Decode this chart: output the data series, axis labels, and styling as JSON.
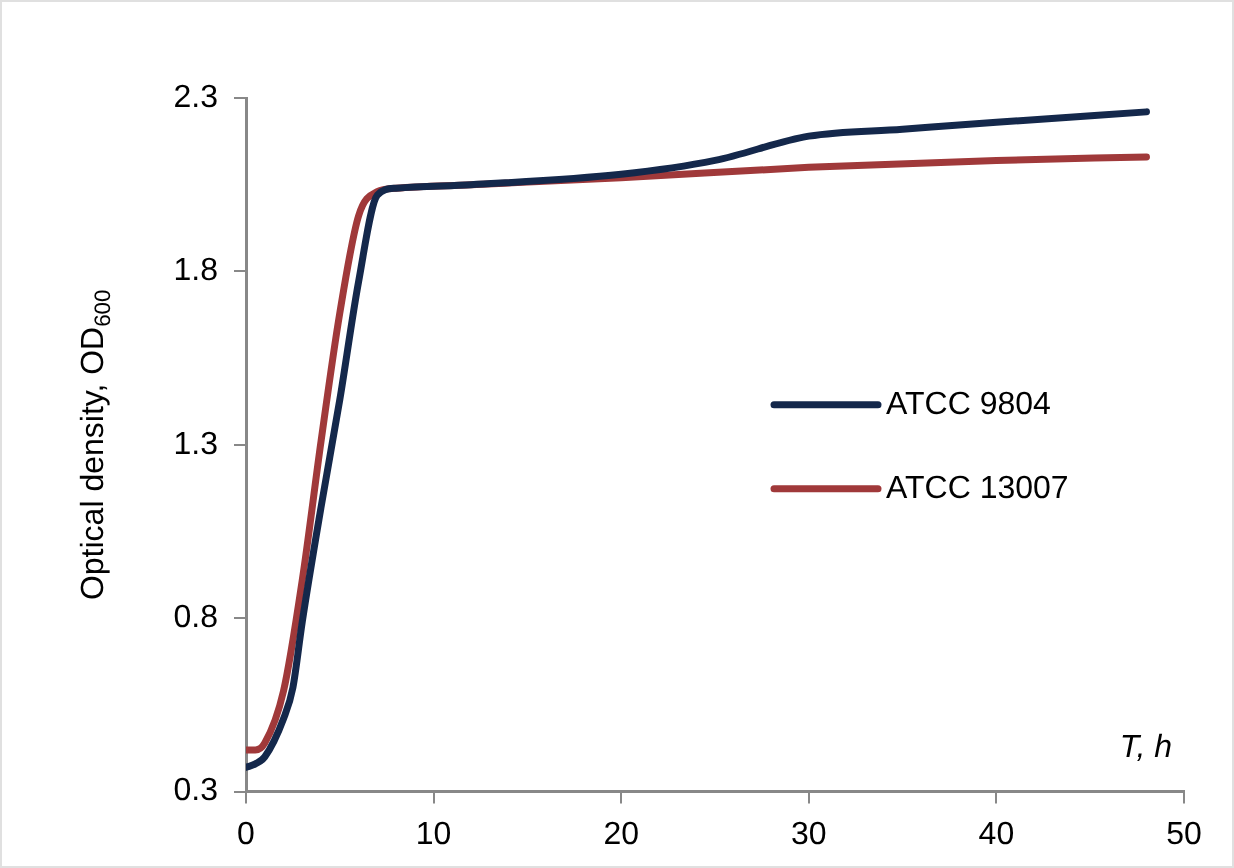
{
  "chart_data": {
    "type": "line",
    "xlabel": "T, h",
    "ylabel": "Optical density, OD$_{600}$",
    "xlim": [
      0,
      50
    ],
    "xticks": [
      0,
      10,
      20,
      30,
      40,
      50
    ],
    "ylim": [
      0.3,
      2.3
    ],
    "yticks": [
      {
        "value": 0.3,
        "label": "0.3"
      },
      {
        "value": 0.8,
        "label": "0.8"
      },
      {
        "value": 1.3,
        "label": "1.3"
      },
      {
        "value": 1.8,
        "label": "1.8"
      },
      {
        "value": 2.3,
        "label": "2.3"
      }
    ],
    "grid": false,
    "legend": "right",
    "marker": "none",
    "line_style": "solid",
    "series": [
      {
        "name": "ATCC 9804",
        "color": "#14284b",
        "x": [
          0,
          0.5,
          1,
          2,
          2.5,
          3,
          4,
          5,
          6,
          7,
          8,
          12,
          20,
          25,
          30,
          35,
          40,
          48
        ],
        "values": [
          0.37,
          0.38,
          0.4,
          0.51,
          0.6,
          0.79,
          1.12,
          1.43,
          1.77,
          2.02,
          2.04,
          2.05,
          2.08,
          2.12,
          2.19,
          2.21,
          2.23,
          2.26
        ]
      },
      {
        "name": "ATCC 13007",
        "color": "#a0393a",
        "x": [
          0,
          0.5,
          1,
          2,
          3,
          4,
          5,
          6,
          7,
          8,
          12,
          20,
          30,
          40,
          48
        ],
        "values": [
          0.42,
          0.42,
          0.44,
          0.59,
          0.91,
          1.31,
          1.68,
          1.96,
          2.03,
          2.04,
          2.05,
          2.07,
          2.1,
          2.12,
          2.13
        ]
      }
    ]
  }
}
